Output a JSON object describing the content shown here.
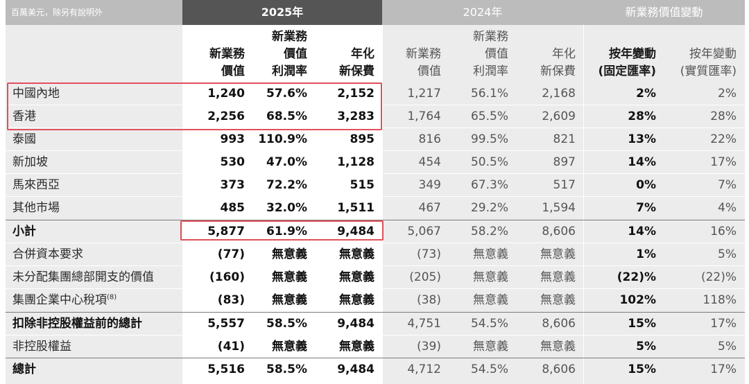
{
  "caption": "百萬美元，除另有說明外",
  "groups": {
    "y2025": "2025年",
    "y2024": "2024年",
    "change": "新業務價值變動"
  },
  "headers": {
    "c1": [
      "新業務",
      "價值"
    ],
    "c2": [
      "新業務",
      "價值",
      "利潤率"
    ],
    "c3": [
      "年化",
      "新保費"
    ],
    "c4": [
      "新業務",
      "價值"
    ],
    "c5": [
      "新業務",
      "價值",
      "利潤率"
    ],
    "c6": [
      "年化",
      "新保費"
    ],
    "c7": [
      "按年變動",
      "(固定匯率)"
    ],
    "c8": [
      "按年變動",
      "(實質匯率)"
    ]
  },
  "rows": [
    {
      "label": "中國內地",
      "bold": false,
      "v": [
        "1,240",
        "57.6%",
        "2,152",
        "1,217",
        "56.1%",
        "2,168",
        "2%",
        "2%"
      ]
    },
    {
      "label": "香港",
      "bold": false,
      "v": [
        "2,256",
        "68.5%",
        "3,283",
        "1,764",
        "65.5%",
        "2,609",
        "28%",
        "28%"
      ]
    },
    {
      "label": "泰國",
      "bold": false,
      "v": [
        "993",
        "110.9%",
        "895",
        "816",
        "99.5%",
        "821",
        "13%",
        "22%"
      ]
    },
    {
      "label": "新加坡",
      "bold": false,
      "v": [
        "530",
        "47.0%",
        "1,128",
        "454",
        "50.5%",
        "897",
        "14%",
        "17%"
      ]
    },
    {
      "label": "馬來西亞",
      "bold": false,
      "v": [
        "373",
        "72.2%",
        "515",
        "349",
        "67.3%",
        "517",
        "0%",
        "7%"
      ]
    },
    {
      "label": "其他市場",
      "bold": false,
      "v": [
        "485",
        "32.0%",
        "1,511",
        "467",
        "29.2%",
        "1,594",
        "7%",
        "4%"
      ]
    },
    {
      "label": "小計",
      "bold": true,
      "v": [
        "5,877",
        "61.9%",
        "9,484",
        "5,067",
        "58.2%",
        "8,606",
        "14%",
        "16%"
      ]
    },
    {
      "label": "合併資本要求",
      "bold": false,
      "v": [
        "(77)",
        "無意義",
        "無意義",
        "(73)",
        "無意義",
        "無意義",
        "1%",
        "5%"
      ]
    },
    {
      "label": "未分配集團總部開支的價值",
      "bold": false,
      "v": [
        "(160)",
        "無意義",
        "無意義",
        "(205)",
        "無意義",
        "無意義",
        "(22)%",
        "(22)%"
      ]
    },
    {
      "label": "集團企業中心稅項",
      "sup": "(8)",
      "bold": false,
      "v": [
        "(83)",
        "無意義",
        "無意義",
        "(38)",
        "無意義",
        "無意義",
        "102%",
        "118%"
      ]
    },
    {
      "label": "扣除非控股權益前的總計",
      "bold": true,
      "v": [
        "5,557",
        "58.5%",
        "9,484",
        "4,751",
        "54.5%",
        "8,606",
        "15%",
        "17%"
      ]
    },
    {
      "label": "非控股權益",
      "bold": false,
      "v": [
        "(41)",
        "無意義",
        "無意義",
        "(39)",
        "無意義",
        "無意義",
        "5%",
        "5%"
      ]
    },
    {
      "label": "總計",
      "bold": true,
      "v": [
        "5,516",
        "58.5%",
        "9,484",
        "4,712",
        "54.5%",
        "8,606",
        "15%",
        "17%"
      ]
    }
  ],
  "colors": {
    "highlight_box": "#e0505a",
    "band_dark": "#555555",
    "band_light": "#bcbcbc",
    "body_grey": "#ececec"
  }
}
